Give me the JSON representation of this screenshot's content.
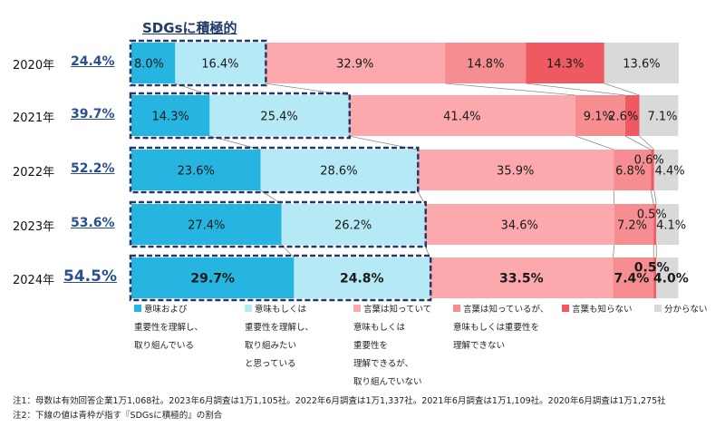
{
  "title": "SDGsに積極的",
  "chart_data": {
    "type": "bar",
    "orientation": "horizontal",
    "stacked": "100%",
    "categories": [
      "2020年",
      "2021年",
      "2022年",
      "2023年",
      "2024年"
    ],
    "highlight_totals": [
      "24.4%",
      "39.7%",
      "52.2%",
      "53.6%",
      "54.5%"
    ],
    "series": [
      {
        "name": "意味および\n重要性を理解し、\n取り組んでいる",
        "color": "#26b5e0",
        "values": [
          8.0,
          14.3,
          23.6,
          27.4,
          29.7
        ]
      },
      {
        "name": "意味もしくは\n重要性を理解し、\n取り組みたい\nと思っている",
        "color": "#b5e9f5",
        "values": [
          16.4,
          25.4,
          28.6,
          26.2,
          24.8
        ]
      },
      {
        "name": "言葉は知っていて\n意味もしくは\n重要性を\n理解できるが、\n取り組んでいない",
        "color": "#fba9ad",
        "values": [
          32.9,
          41.4,
          35.9,
          34.6,
          33.5
        ]
      },
      {
        "name": "言葉は知っているが、\n意味もしくは重要性を\n理解できない",
        "color": "#f58d91",
        "values": [
          14.8,
          9.1,
          6.8,
          7.2,
          7.4
        ]
      },
      {
        "name": "言葉も知らない",
        "color": "#ef5a62",
        "values": [
          14.3,
          2.6,
          0.6,
          0.5,
          0.5
        ]
      },
      {
        "name": "分からない",
        "color": "#d9d9d9",
        "values": [
          13.6,
          7.1,
          4.4,
          4.1,
          4.0
        ]
      }
    ],
    "value_labels": [
      [
        "8.0%",
        "16.4%",
        "32.9%",
        "14.8%",
        "14.3%",
        "13.6%"
      ],
      [
        "14.3%",
        "25.4%",
        "41.4%",
        "9.1%",
        "2.6%",
        "7.1%"
      ],
      [
        "23.6%",
        "28.6%",
        "35.9%",
        "6.8%",
        "0.6%",
        "4.4%"
      ],
      [
        "27.4%",
        "26.2%",
        "34.6%",
        "7.2%",
        "0.5%",
        "4.1%"
      ],
      [
        "29.7%",
        "24.8%",
        "33.5%",
        "7.4%",
        "0.5%",
        "4.0%"
      ]
    ],
    "legend_position": "bottom"
  },
  "notes": [
    "注1：母数は有効回答企業1万1,068社。2023年6月調査は1万1,105社。2022年6月調査は1万1,337社。2021年6月調査は1万1,109社。2020年6月調査は1万1,275社",
    "注2：下線の値は青枠が指す『SDGsに積極的』の割合"
  ]
}
